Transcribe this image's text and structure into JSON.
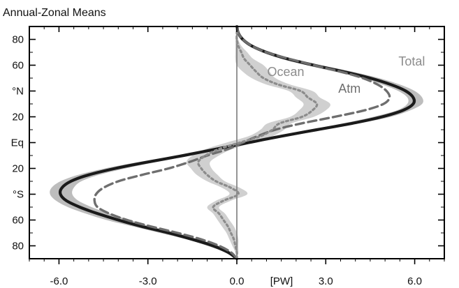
{
  "chart_data": {
    "type": "line",
    "title": "Annual-Zonal Means",
    "xlabel": "[PW]",
    "ylabel": "",
    "xlim": [
      -7.0,
      7.0
    ],
    "ylim": [
      -90,
      90
    ],
    "x_ticks": [
      {
        "value": -6.0,
        "label": "-6.0"
      },
      {
        "value": -3.0,
        "label": "-3.0"
      },
      {
        "value": 0.0,
        "label": "0.0"
      },
      {
        "value": 3.0,
        "label": "3.0"
      },
      {
        "value": 6.0,
        "label": "6.0"
      }
    ],
    "y_ticks": [
      {
        "value": 80,
        "label": "80"
      },
      {
        "value": 60,
        "label": "60"
      },
      {
        "value": 40,
        "label": "°N"
      },
      {
        "value": 20,
        "label": "20"
      },
      {
        "value": 0,
        "label": "Eq"
      },
      {
        "value": -20,
        "label": "20"
      },
      {
        "value": -40,
        "label": "°S"
      },
      {
        "value": -60,
        "label": "60"
      },
      {
        "value": -80,
        "label": "80"
      }
    ],
    "latitude": [
      -90,
      -85,
      -80,
      -75,
      -70,
      -65,
      -60,
      -55,
      -50,
      -45,
      -40,
      -35,
      -30,
      -25,
      -20,
      -15,
      -10,
      -5,
      0,
      5,
      10,
      15,
      20,
      25,
      30,
      35,
      40,
      45,
      50,
      55,
      60,
      65,
      70,
      75,
      80,
      85,
      90
    ],
    "series": [
      {
        "name": "Total",
        "style": "solid",
        "color": "#1a1a1a",
        "values": [
          0.0,
          -0.3,
          -0.8,
          -1.5,
          -2.3,
          -3.2,
          -4.0,
          -4.7,
          -5.3,
          -5.75,
          -5.95,
          -5.9,
          -5.6,
          -5.0,
          -4.1,
          -3.0,
          -1.8,
          -0.7,
          0.4,
          1.5,
          2.7,
          3.9,
          4.9,
          5.6,
          5.95,
          5.95,
          5.7,
          5.2,
          4.5,
          3.6,
          2.6,
          1.7,
          1.0,
          0.5,
          0.2,
          0.05,
          0.0
        ],
        "band": {
          "color": "#bdbdbd",
          "lower": [
            0.0,
            -0.4,
            -1.0,
            -1.7,
            -2.6,
            -3.5,
            -4.4,
            -5.1,
            -5.7,
            -6.1,
            -6.3,
            -6.25,
            -5.95,
            -5.35,
            -4.45,
            -3.3,
            -2.05,
            -0.9,
            0.2,
            1.25,
            2.5,
            3.6,
            4.6,
            5.4,
            5.75,
            5.75,
            5.45,
            4.9,
            4.2,
            3.3,
            2.35,
            1.5,
            0.85,
            0.4,
            0.15,
            0.03,
            0.0
          ],
          "upper": [
            0.0,
            -0.2,
            -0.6,
            -1.3,
            -2.0,
            -2.9,
            -3.6,
            -4.3,
            -4.9,
            -5.35,
            -5.55,
            -5.5,
            -5.25,
            -4.65,
            -3.75,
            -2.7,
            -1.55,
            -0.5,
            0.6,
            1.75,
            2.95,
            4.15,
            5.2,
            5.85,
            6.25,
            6.25,
            6.0,
            5.5,
            4.8,
            3.9,
            2.85,
            1.9,
            1.15,
            0.6,
            0.25,
            0.07,
            0.0
          ]
        }
      },
      {
        "name": "Atm",
        "style": "dashed",
        "color": "#6e6e6e",
        "values": [
          0.0,
          -0.2,
          -0.6,
          -1.2,
          -2.0,
          -2.9,
          -3.7,
          -4.3,
          -4.7,
          -4.8,
          -4.75,
          -4.5,
          -4.0,
          -3.2,
          -2.3,
          -1.6,
          -1.0,
          -0.3,
          0.2,
          0.7,
          1.3,
          2.2,
          3.3,
          4.3,
          4.95,
          5.15,
          5.05,
          4.75,
          4.25,
          3.5,
          2.6,
          1.75,
          1.0,
          0.5,
          0.2,
          0.05,
          0.0
        ]
      },
      {
        "name": "Ocean",
        "style": "dotted",
        "color": "#8c8c8c",
        "values": [
          0.0,
          0.0,
          -0.05,
          -0.1,
          -0.2,
          -0.3,
          -0.45,
          -0.6,
          -0.8,
          -0.45,
          0.05,
          -0.2,
          -0.7,
          -1.0,
          -1.2,
          -1.3,
          -1.05,
          -0.6,
          0.1,
          0.8,
          1.2,
          1.45,
          2.2,
          2.55,
          2.7,
          2.4,
          2.15,
          1.4,
          0.9,
          0.65,
          0.45,
          0.25,
          0.15,
          0.05,
          0.0,
          0.0,
          0.0
        ],
        "band": {
          "color": "#d0d0d0",
          "lower": [
            0.0,
            -0.05,
            -0.15,
            -0.25,
            -0.35,
            -0.5,
            -0.65,
            -0.8,
            -1.0,
            -0.7,
            -0.25,
            -0.5,
            -1.0,
            -1.35,
            -1.55,
            -1.7,
            -1.5,
            -1.05,
            -0.35,
            0.4,
            0.8,
            1.05,
            1.8,
            2.1,
            2.25,
            2.0,
            1.75,
            1.0,
            0.5,
            0.2,
            0.0,
            -0.05,
            -0.05,
            -0.05,
            -0.05,
            -0.02,
            0.0
          ],
          "upper": [
            0.0,
            0.05,
            0.05,
            0.05,
            0.0,
            -0.1,
            -0.25,
            -0.4,
            -0.6,
            -0.2,
            0.35,
            0.1,
            -0.4,
            -0.65,
            -0.85,
            -0.9,
            -0.6,
            -0.15,
            0.55,
            1.2,
            1.6,
            1.85,
            2.6,
            3.0,
            3.15,
            2.8,
            2.55,
            1.8,
            1.3,
            1.1,
            0.9,
            0.55,
            0.35,
            0.15,
            0.05,
            0.02,
            0.0
          ]
        }
      }
    ],
    "series_labels": [
      {
        "text": "Total",
        "x": 5.9,
        "lat": 63,
        "color": "#8c8c8c"
      },
      {
        "text": "Ocean",
        "x": 1.65,
        "lat": 55,
        "color": "#8c8c8c"
      },
      {
        "text": "Atm",
        "x": 3.8,
        "lat": 42,
        "color": "#6e6e6e"
      }
    ],
    "zero_line": true,
    "grid": false,
    "legend": "inline labels"
  }
}
